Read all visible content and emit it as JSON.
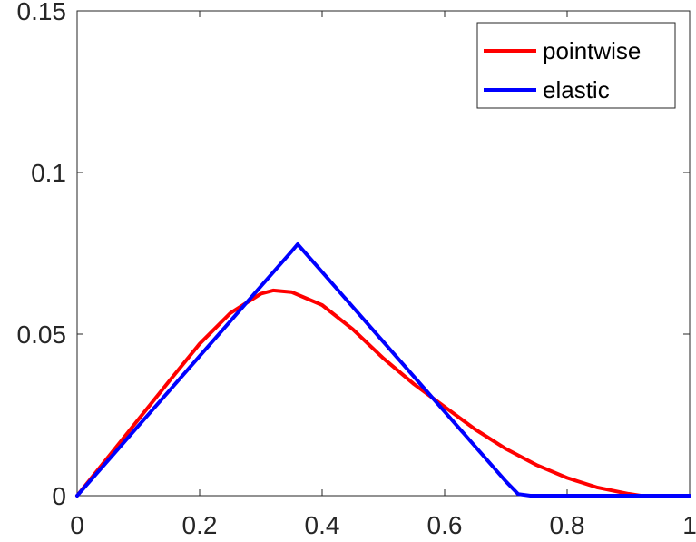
{
  "chart_data": {
    "type": "line",
    "title": "",
    "xlabel": "",
    "ylabel": "",
    "xlim": [
      0,
      1
    ],
    "ylim": [
      0,
      0.15
    ],
    "x_ticks": [
      0,
      0.2,
      0.4,
      0.6,
      0.8,
      1
    ],
    "x_tick_labels": [
      "0",
      "0.2",
      "0.4",
      "0.6",
      "0.8",
      "1"
    ],
    "y_ticks": [
      0,
      0.05,
      0.1,
      0.15
    ],
    "y_tick_labels": [
      "0",
      "0.05",
      "0.1",
      "0.15"
    ],
    "grid": false,
    "legend_position": "top-right",
    "series": [
      {
        "name": "pointwise",
        "color": "#ff0000",
        "x": [
          0,
          0.05,
          0.1,
          0.15,
          0.2,
          0.25,
          0.3,
          0.32,
          0.35,
          0.4,
          0.45,
          0.5,
          0.55,
          0.6,
          0.65,
          0.7,
          0.75,
          0.8,
          0.85,
          0.9,
          0.92,
          1
        ],
        "y": [
          0,
          0.0118,
          0.0236,
          0.0354,
          0.047,
          0.0565,
          0.0625,
          0.0635,
          0.063,
          0.059,
          0.0515,
          0.0425,
          0.0345,
          0.0275,
          0.0205,
          0.0145,
          0.0095,
          0.0055,
          0.0025,
          0.0006,
          0,
          0
        ]
      },
      {
        "name": "elastic",
        "color": "#0000ff",
        "x": [
          0,
          0.05,
          0.1,
          0.15,
          0.2,
          0.25,
          0.3,
          0.35,
          0.36,
          0.4,
          0.45,
          0.5,
          0.55,
          0.6,
          0.65,
          0.7,
          0.72,
          0.74,
          1
        ],
        "y": [
          0,
          0.0108,
          0.0216,
          0.0324,
          0.0432,
          0.054,
          0.0648,
          0.0756,
          0.0778,
          0.0692,
          0.0584,
          0.0476,
          0.0368,
          0.026,
          0.0152,
          0.0044,
          0.0005,
          0,
          0
        ]
      }
    ]
  }
}
